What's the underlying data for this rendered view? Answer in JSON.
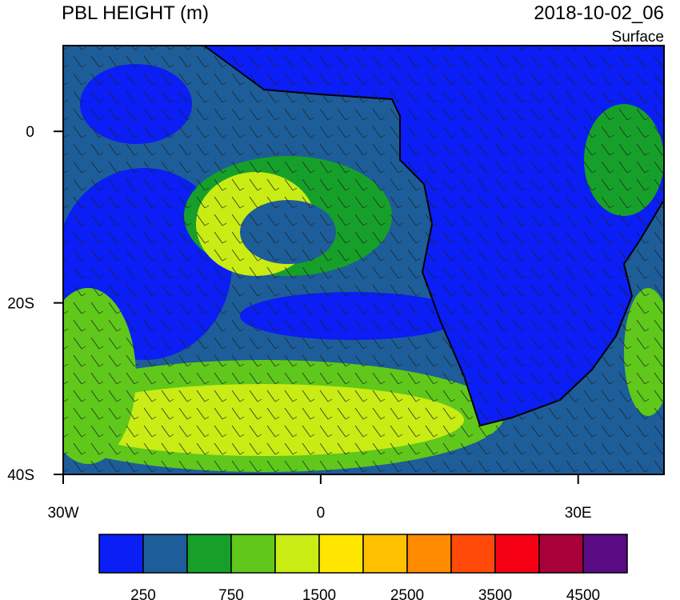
{
  "title": "PBL HEIGHT (m)",
  "valid_time": "2018-10-02_06",
  "level": "Surface",
  "map": {
    "xlim": [
      -30,
      40
    ],
    "ylim": [
      -40,
      10
    ],
    "lat_ticks": [
      {
        "value": 0,
        "label": "0"
      },
      {
        "value": -20,
        "label": "20S"
      },
      {
        "value": -40,
        "label": "40S"
      }
    ],
    "lon_ticks": [
      {
        "value": -30,
        "label": "30W"
      },
      {
        "value": 0,
        "label": "0"
      },
      {
        "value": 30,
        "label": "30E"
      }
    ]
  },
  "colorbar": {
    "colors": [
      "#0a1ef5",
      "#1d5d99",
      "#16a02a",
      "#5fc81a",
      "#c8ec14",
      "#ffe600",
      "#ffc000",
      "#ff8c00",
      "#ff4a0a",
      "#f50014",
      "#a80038",
      "#5a0a82"
    ],
    "labels": [
      250,
      750,
      1500,
      2500,
      3500,
      4500
    ]
  }
}
